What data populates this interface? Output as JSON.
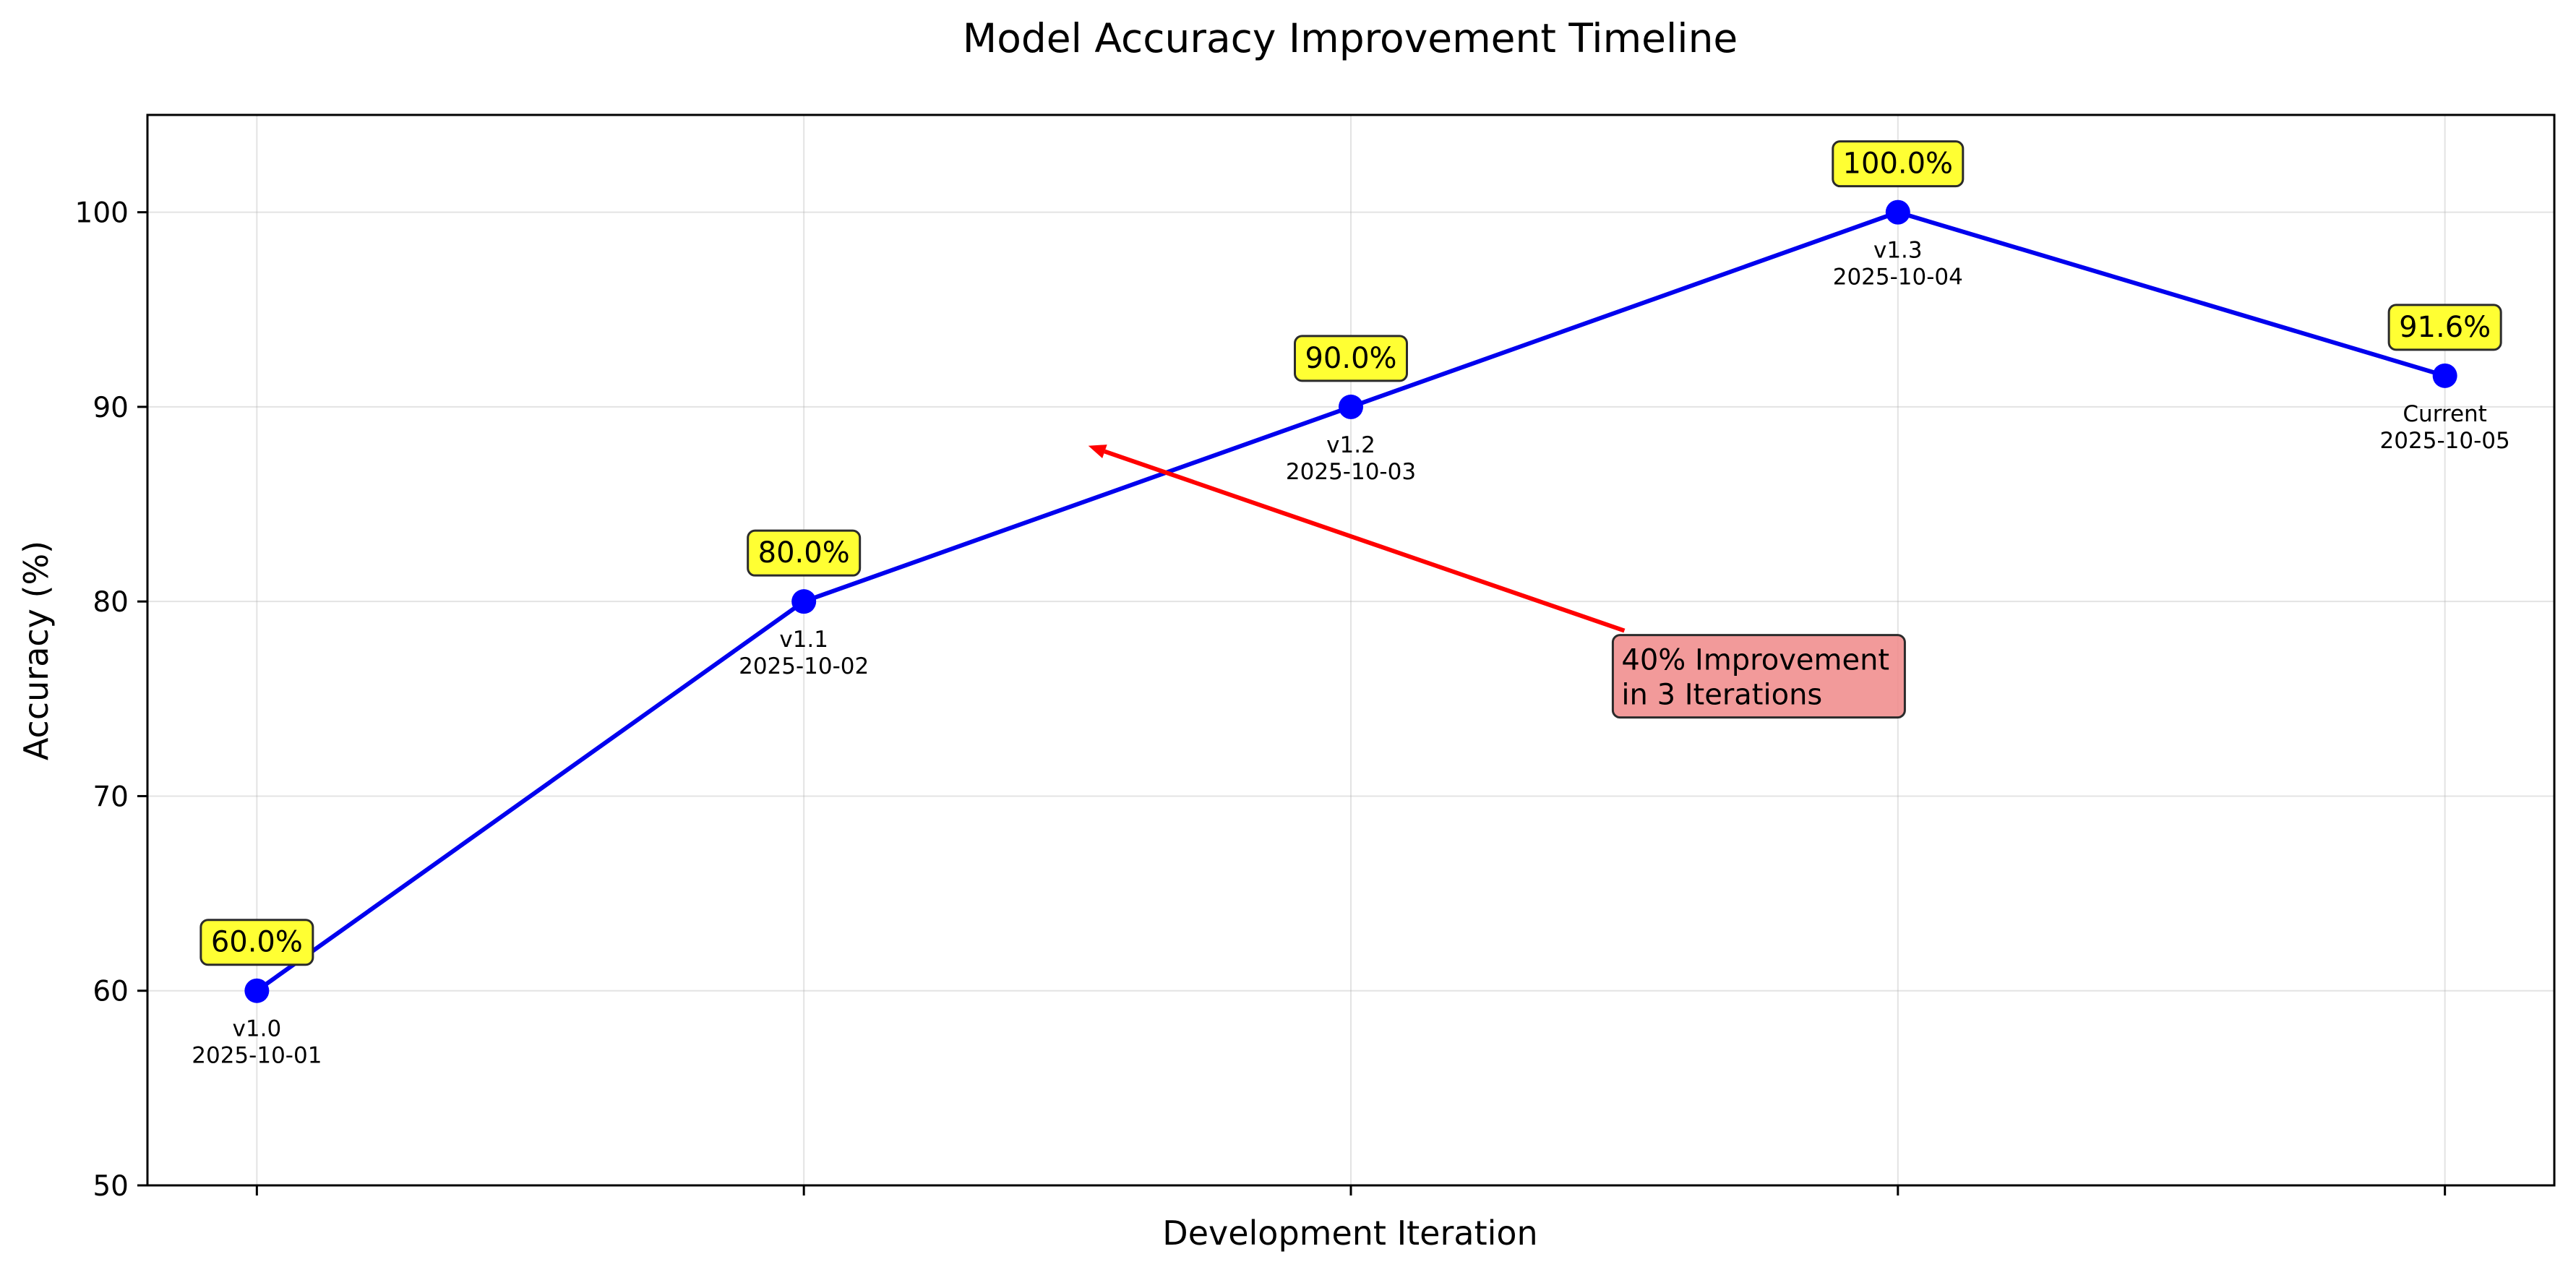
{
  "chart_data": {
    "type": "line",
    "title": "Model Accuracy Improvement Timeline",
    "xlabel": "Development Iteration",
    "ylabel": "Accuracy (%)",
    "ylim": [
      50,
      105
    ],
    "yticks": [
      50,
      60,
      70,
      80,
      90,
      100
    ],
    "grid": true,
    "colors": {
      "line": "#0000ee",
      "marker": "#0000ff",
      "value_box": "#ffff33",
      "annotation_box": "#f08888",
      "arrow": "#ff0000"
    },
    "points": [
      {
        "version": "v1.0",
        "date": "2025-10-01",
        "value": 60.0,
        "label": "60.0%"
      },
      {
        "version": "v1.1",
        "date": "2025-10-02",
        "value": 80.0,
        "label": "80.0%"
      },
      {
        "version": "v1.2",
        "date": "2025-10-03",
        "value": 90.0,
        "label": "90.0%"
      },
      {
        "version": "v1.3",
        "date": "2025-10-04",
        "value": 100.0,
        "label": "100.0%"
      },
      {
        "version": "Current",
        "date": "2025-10-05",
        "value": 91.6,
        "label": "91.6%"
      }
    ],
    "annotation": {
      "lines": [
        "40% Improvement",
        "in 3 Iterations"
      ],
      "arrow_target": {
        "x": 1.52,
        "y": 88
      },
      "text_anchor": {
        "x": 2.5,
        "y": 78.5
      }
    }
  }
}
